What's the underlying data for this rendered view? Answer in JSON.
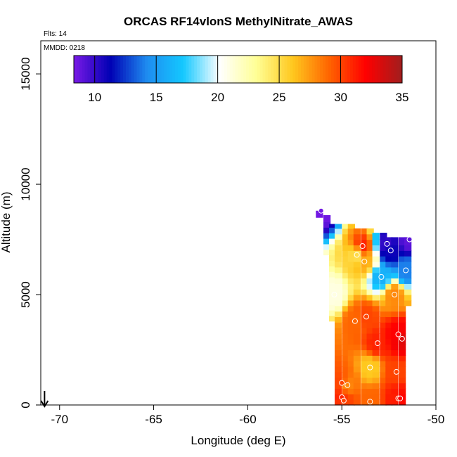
{
  "chart_data": {
    "type": "heatmap",
    "title": "ORCAS RF14vlonS MethylNitrate_AWAS",
    "annotations": {
      "flights": "Flts: 14",
      "date": "MMDD: 0218"
    },
    "xlabel": "Longitude (deg E)",
    "ylabel": "Altitude (m)",
    "xlim": [
      -71,
      -50
    ],
    "ylim": [
      0,
      16500
    ],
    "xticks": [
      -70,
      -65,
      -60,
      -55,
      -50
    ],
    "yticks": [
      0,
      5000,
      10000,
      15000
    ],
    "grid": false,
    "colorbar": {
      "range": [
        8.3,
        35
      ],
      "ticks": [
        10,
        15,
        20,
        25,
        30,
        35
      ],
      "placement": "top-inside",
      "stops": [
        "#7a1ae6",
        "#0000b4",
        "#1e8cf0",
        "#14c8ff",
        "#ffffff",
        "#ffff96",
        "#ffc81e",
        "#ff6400",
        "#ff0000",
        "#a01e1e"
      ]
    },
    "heatmap": {
      "x_range": [
        -56.3,
        -51.3
      ],
      "y_range": [
        0,
        8800
      ],
      "columns": [
        {
          "lon": -56.2,
          "ymin": 8500,
          "ymax": 8800
        },
        {
          "lon": -55.8,
          "ymin": 6800,
          "ymax": 8600
        },
        {
          "lon": -55.5,
          "ymin": 3800,
          "ymax": 8200
        },
        {
          "lon": -55.2,
          "ymin": 0,
          "ymax": 8200
        },
        {
          "lon": -54.8,
          "ymin": 0,
          "ymax": 8200
        },
        {
          "lon": -54.5,
          "ymin": 0,
          "ymax": 8200
        },
        {
          "lon": -54.2,
          "ymin": 0,
          "ymax": 8000
        },
        {
          "lon": -53.8,
          "ymin": 0,
          "ymax": 8000
        },
        {
          "lon": -53.5,
          "ymin": 0,
          "ymax": 8000
        },
        {
          "lon": -53.2,
          "ymin": 0,
          "ymax": 7800
        },
        {
          "lon": -52.8,
          "ymin": 0,
          "ymax": 7800
        },
        {
          "lon": -52.5,
          "ymin": 0,
          "ymax": 7600
        },
        {
          "lon": -52.2,
          "ymin": 0,
          "ymax": 7600
        },
        {
          "lon": -51.8,
          "ymin": 0,
          "ymax": 7600
        },
        {
          "lon": -51.5,
          "ymin": 4500,
          "ymax": 7600
        }
      ]
    },
    "samples": [
      {
        "lon": -56.1,
        "alt": 8800,
        "value": 8.5
      },
      {
        "lon": -52.6,
        "alt": 7300,
        "value": 10
      },
      {
        "lon": -52.4,
        "alt": 7000,
        "value": 11
      },
      {
        "lon": -51.4,
        "alt": 7500,
        "value": 9
      },
      {
        "lon": -53.9,
        "alt": 7200,
        "value": 31
      },
      {
        "lon": -54.2,
        "alt": 6800,
        "value": 25
      },
      {
        "lon": -53.8,
        "alt": 6500,
        "value": 27
      },
      {
        "lon": -51.6,
        "alt": 6100,
        "value": 14
      },
      {
        "lon": -52.9,
        "alt": 5800,
        "value": 16
      },
      {
        "lon": -55.4,
        "alt": 5000,
        "value": 21
      },
      {
        "lon": -52.2,
        "alt": 5000,
        "value": 28
      },
      {
        "lon": -54.3,
        "alt": 3800,
        "value": 29
      },
      {
        "lon": -53.7,
        "alt": 4000,
        "value": 30
      },
      {
        "lon": -52.0,
        "alt": 3200,
        "value": 32
      },
      {
        "lon": -51.8,
        "alt": 3000,
        "value": 33
      },
      {
        "lon": -53.1,
        "alt": 2800,
        "value": 31
      },
      {
        "lon": -53.5,
        "alt": 1700,
        "value": 26
      },
      {
        "lon": -52.1,
        "alt": 1500,
        "value": 30
      },
      {
        "lon": -55.0,
        "alt": 1000,
        "value": 30
      },
      {
        "lon": -54.7,
        "alt": 900,
        "value": 28
      },
      {
        "lon": -55.0,
        "alt": 350,
        "value": 31
      },
      {
        "lon": -54.9,
        "alt": 200,
        "value": 30
      },
      {
        "lon": -53.5,
        "alt": 150,
        "value": 29
      },
      {
        "lon": -52.0,
        "alt": 300,
        "value": 31
      },
      {
        "lon": -51.9,
        "alt": 300,
        "value": 32
      }
    ],
    "arrow": {
      "lon": -70.8,
      "direction": "down"
    }
  }
}
